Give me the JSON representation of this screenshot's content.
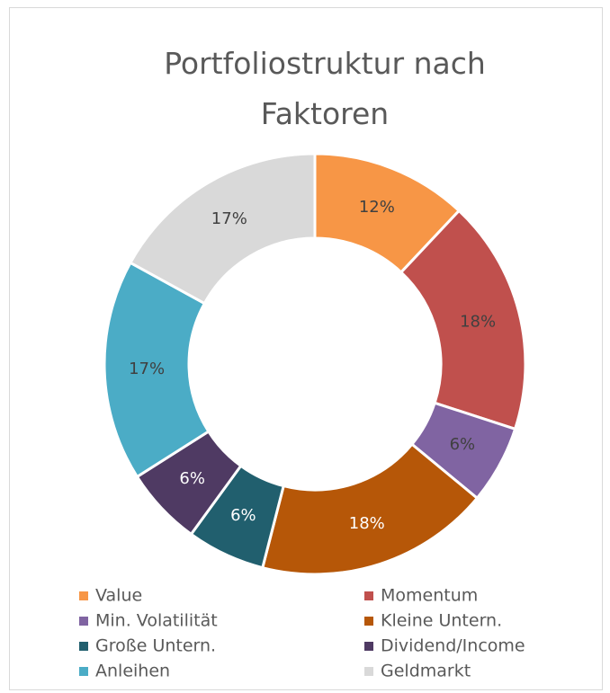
{
  "chart_data": {
    "type": "donut",
    "title": "Portfoliostruktur nach Faktoren",
    "categories": [
      "Value",
      "Momentum",
      "Min. Volatilität",
      "Kleine Untern.",
      "Große Untern.",
      "Dividend/Income",
      "Anleihen",
      "Geldmarkt"
    ],
    "values": [
      12,
      18,
      6,
      18,
      6,
      6,
      17,
      17
    ],
    "value_labels": [
      "12%",
      "18%",
      "6%",
      "18%",
      "6%",
      "6%",
      "17%",
      "17%"
    ],
    "colors": [
      "#f79646",
      "#c0504d",
      "#8064a2",
      "#b65708",
      "#215f6e",
      "#4f3a63",
      "#4bacc6",
      "#d9d9d9"
    ],
    "legend": "bottom"
  }
}
